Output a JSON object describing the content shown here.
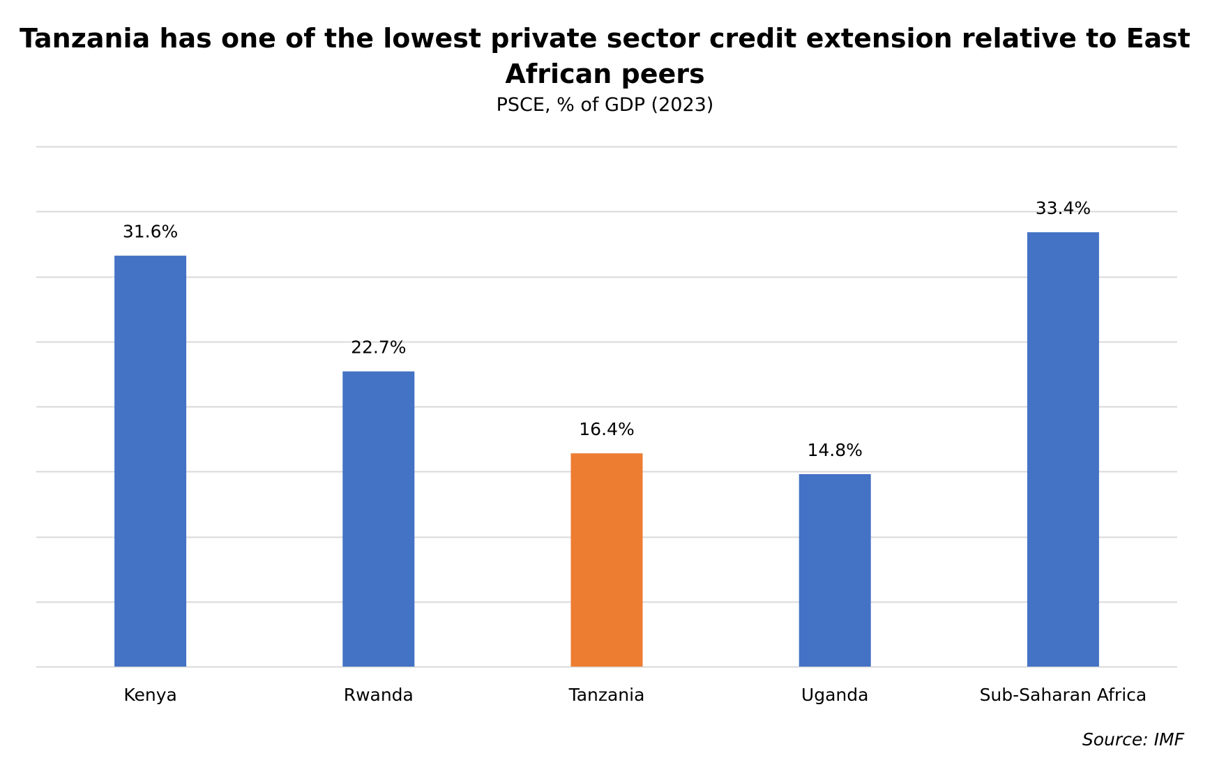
{
  "chart_data": {
    "type": "bar",
    "title": "Tanzania has one of the lowest private sector credit extension relative to East African peers",
    "subtitle": "PSCE, % of GDP (2023)",
    "categories": [
      "Kenya",
      "Rwanda",
      "Tanzania",
      "Uganda",
      "Sub-Saharan Africa"
    ],
    "values": [
      31.6,
      22.7,
      16.4,
      14.8,
      33.4
    ],
    "value_labels": [
      "31.6%",
      "22.7%",
      "16.4%",
      "14.8%",
      "33.4%"
    ],
    "colors": [
      "#4472c4",
      "#4472c4",
      "#ed7d31",
      "#4472c4",
      "#4472c4"
    ],
    "xlabel": "",
    "ylabel": "",
    "ylim": [
      0,
      40
    ],
    "gridlines": [
      0,
      5,
      10,
      15,
      20,
      25,
      30,
      35,
      40
    ],
    "grid": true,
    "y_tick_labels_shown": false,
    "legend": "none",
    "source": "Source: IMF"
  }
}
